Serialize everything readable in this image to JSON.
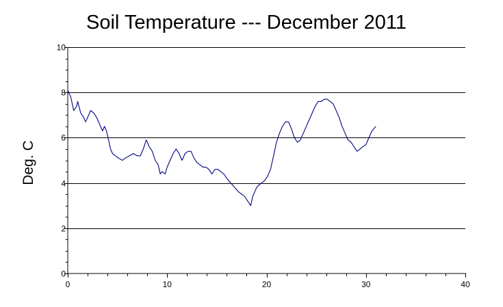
{
  "chart_data": {
    "type": "line",
    "title": "Soil Temperature --- December 2011",
    "xlabel": "",
    "ylabel": "Deg. C",
    "xlim": [
      0,
      40
    ],
    "ylim": [
      0,
      10
    ],
    "x_ticks": [
      "0",
      "10",
      "20",
      "30",
      "40"
    ],
    "y_ticks": [
      "0",
      "2",
      "4",
      "6",
      "8",
      "10"
    ],
    "grid": "horizontal",
    "line_color": "#000080",
    "series": [
      {
        "x": [
          0,
          0.3,
          0.6,
          0.9,
          1.0,
          1.3,
          1.6,
          1.8,
          2.0,
          2.3,
          2.6,
          2.9,
          3.2,
          3.5,
          3.7,
          3.9,
          4.1,
          4.3,
          4.5,
          4.8,
          5.1,
          5.5,
          5.8,
          6.2,
          6.6,
          7.0,
          7.3,
          7.6,
          7.9,
          8.2,
          8.5,
          8.8,
          9.1,
          9.3,
          9.5,
          9.8,
          10.0,
          10.3,
          10.6,
          10.9,
          11.2,
          11.5,
          11.8,
          12.1,
          12.4,
          12.7,
          13.0,
          13.3,
          13.6,
          13.9,
          14.2,
          14.5,
          14.8,
          15.1,
          15.4,
          15.7,
          16.0,
          16.4,
          16.8,
          17.2,
          17.5,
          17.8,
          18.1,
          18.4,
          18.6,
          18.8,
          19.0,
          19.2,
          19.5,
          19.8,
          20.1,
          20.4,
          20.7,
          21.0,
          21.3,
          21.6,
          21.9,
          22.2,
          22.5,
          22.8,
          23.1,
          23.4,
          23.7,
          24.0,
          24.3,
          24.6,
          24.9,
          25.2,
          25.5,
          25.8,
          26.1,
          26.4,
          26.7,
          27.0,
          27.3,
          27.6,
          27.9,
          28.2,
          28.5,
          28.8,
          29.1,
          29.4,
          29.7,
          30.0,
          30.3,
          30.6,
          31.0
        ],
        "y": [
          8.1,
          7.8,
          7.2,
          7.4,
          7.6,
          7.1,
          6.9,
          6.7,
          6.9,
          7.2,
          7.1,
          6.9,
          6.6,
          6.3,
          6.5,
          6.3,
          5.9,
          5.5,
          5.3,
          5.2,
          5.1,
          5.0,
          5.1,
          5.2,
          5.3,
          5.2,
          5.2,
          5.5,
          5.9,
          5.6,
          5.4,
          5.0,
          4.8,
          4.4,
          4.5,
          4.4,
          4.7,
          5.0,
          5.3,
          5.5,
          5.3,
          5.0,
          5.3,
          5.4,
          5.4,
          5.1,
          4.9,
          4.8,
          4.7,
          4.7,
          4.6,
          4.4,
          4.6,
          4.6,
          4.5,
          4.4,
          4.2,
          4.0,
          3.8,
          3.6,
          3.5,
          3.4,
          3.2,
          3.0,
          3.4,
          3.6,
          3.8,
          3.9,
          4.0,
          4.1,
          4.3,
          4.6,
          5.2,
          5.8,
          6.2,
          6.5,
          6.7,
          6.7,
          6.4,
          6.0,
          5.8,
          5.9,
          6.2,
          6.5,
          6.8,
          7.1,
          7.4,
          7.6,
          7.6,
          7.7,
          7.7,
          7.6,
          7.5,
          7.2,
          6.9,
          6.5,
          6.2,
          5.9,
          5.8,
          5.6,
          5.4,
          5.5,
          5.6,
          5.7,
          6.0,
          6.3,
          6.5
        ]
      }
    ]
  }
}
